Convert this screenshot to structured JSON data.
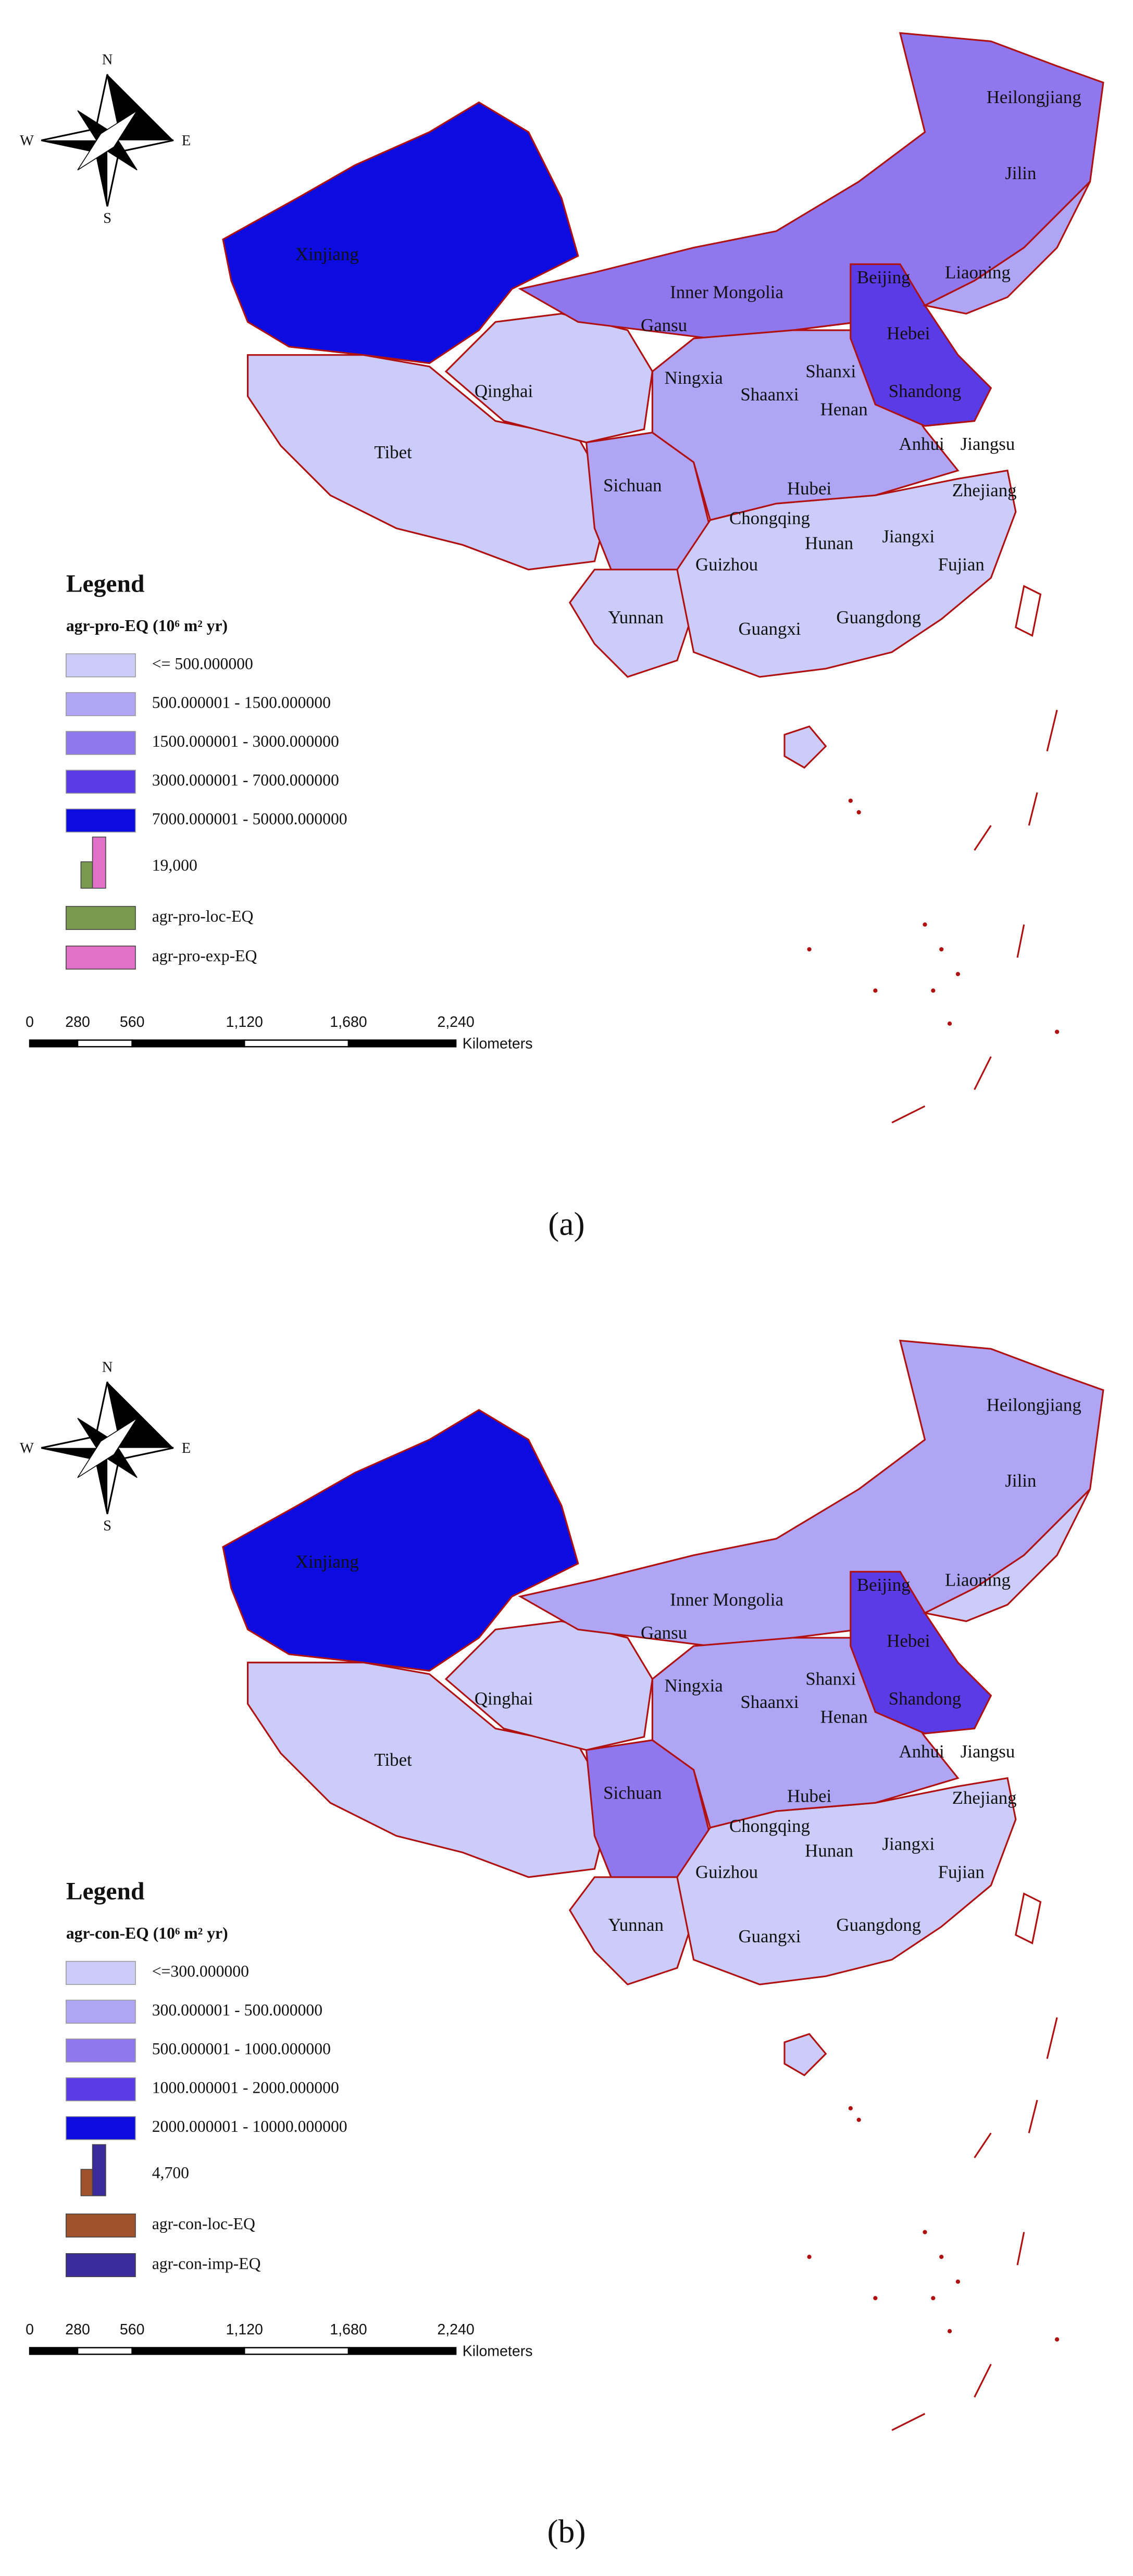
{
  "compass": {
    "n": "N",
    "s": "S",
    "e": "E",
    "w": "W"
  },
  "panels": [
    {
      "caption": "(a)",
      "provinces": [
        "Heilongjiang",
        "Jilin",
        "Liaoning",
        "Inner Mongolia",
        "Beijing",
        "Hebei",
        "Gansu",
        "Ningxia",
        "Shanxi",
        "Shandong",
        "Shaanxi",
        "Henan",
        "Qinghai",
        "Xinjiang",
        "Tibet",
        "Anhui",
        "Jiangsu",
        "Sichuan",
        "Hubei",
        "Zhejiang",
        "Chongqing",
        "Hunan",
        "Jiangxi",
        "Guizhou",
        "Fujian",
        "Yunnan",
        "Guangxi",
        "Guangdong"
      ],
      "legend": {
        "title": "Legend",
        "field": "agr-pro-EQ (10⁶ m² yr)",
        "classes": [
          {
            "label": "<= 500.000000",
            "color": "#ccccfa"
          },
          {
            "label": "500.000001 - 1500.000000",
            "color": "#b0a4f4"
          },
          {
            "label": "1500.000001 - 3000.000000",
            "color": "#8f78ee"
          },
          {
            "label": "3000.000001 - 7000.000000",
            "color": "#5a3ce6"
          },
          {
            "label": "7000.000001 - 50000.000000",
            "color": "#0c0ce0"
          }
        ],
        "chart_value": "19,000",
        "series": [
          {
            "name": "agr-pro-loc-EQ",
            "color": "#7a9a50"
          },
          {
            "name": "agr-pro-exp-EQ",
            "color": "#e070c8"
          }
        ]
      },
      "scale": {
        "ticks": [
          "0",
          "280",
          "560",
          "1,120",
          "1,680",
          "2,240"
        ],
        "unit": "Kilometers"
      }
    },
    {
      "caption": "(b)",
      "provinces": [
        "Heilongjiang",
        "Jilin",
        "Liaoning",
        "Inner Mongolia",
        "Beijing",
        "Hebei",
        "Gansu",
        "Ningxia",
        "Shanxi",
        "Shandong",
        "Shaanxi",
        "Henan",
        "Qinghai",
        "Xinjiang",
        "Tibet",
        "Anhui",
        "Jiangsu",
        "Sichuan",
        "Hubei",
        "Zhejiang",
        "Chongqing",
        "Hunan",
        "Jiangxi",
        "Guizhou",
        "Fujian",
        "Yunnan",
        "Guangxi",
        "Guangdong"
      ],
      "legend": {
        "title": "Legend",
        "field": "agr-con-EQ (10⁶ m² yr)",
        "classes": [
          {
            "label": "<=300.000000",
            "color": "#ccccfa"
          },
          {
            "label": "300.000001 - 500.000000",
            "color": "#b0a4f4"
          },
          {
            "label": "500.000001 - 1000.000000",
            "color": "#8f78ee"
          },
          {
            "label": "1000.000001 - 2000.000000",
            "color": "#5a3ce6"
          },
          {
            "label": "2000.000001 - 10000.000000",
            "color": "#0c0ce0"
          }
        ],
        "chart_value": "4,700",
        "series": [
          {
            "name": "agr-con-loc-EQ",
            "color": "#a0522d"
          },
          {
            "name": "agr-con-imp-EQ",
            "color": "#3a2a9a"
          }
        ]
      },
      "scale": {
        "ticks": [
          "0",
          "280",
          "560",
          "1,120",
          "1,680",
          "2,240"
        ],
        "unit": "Kilometers"
      }
    }
  ]
}
